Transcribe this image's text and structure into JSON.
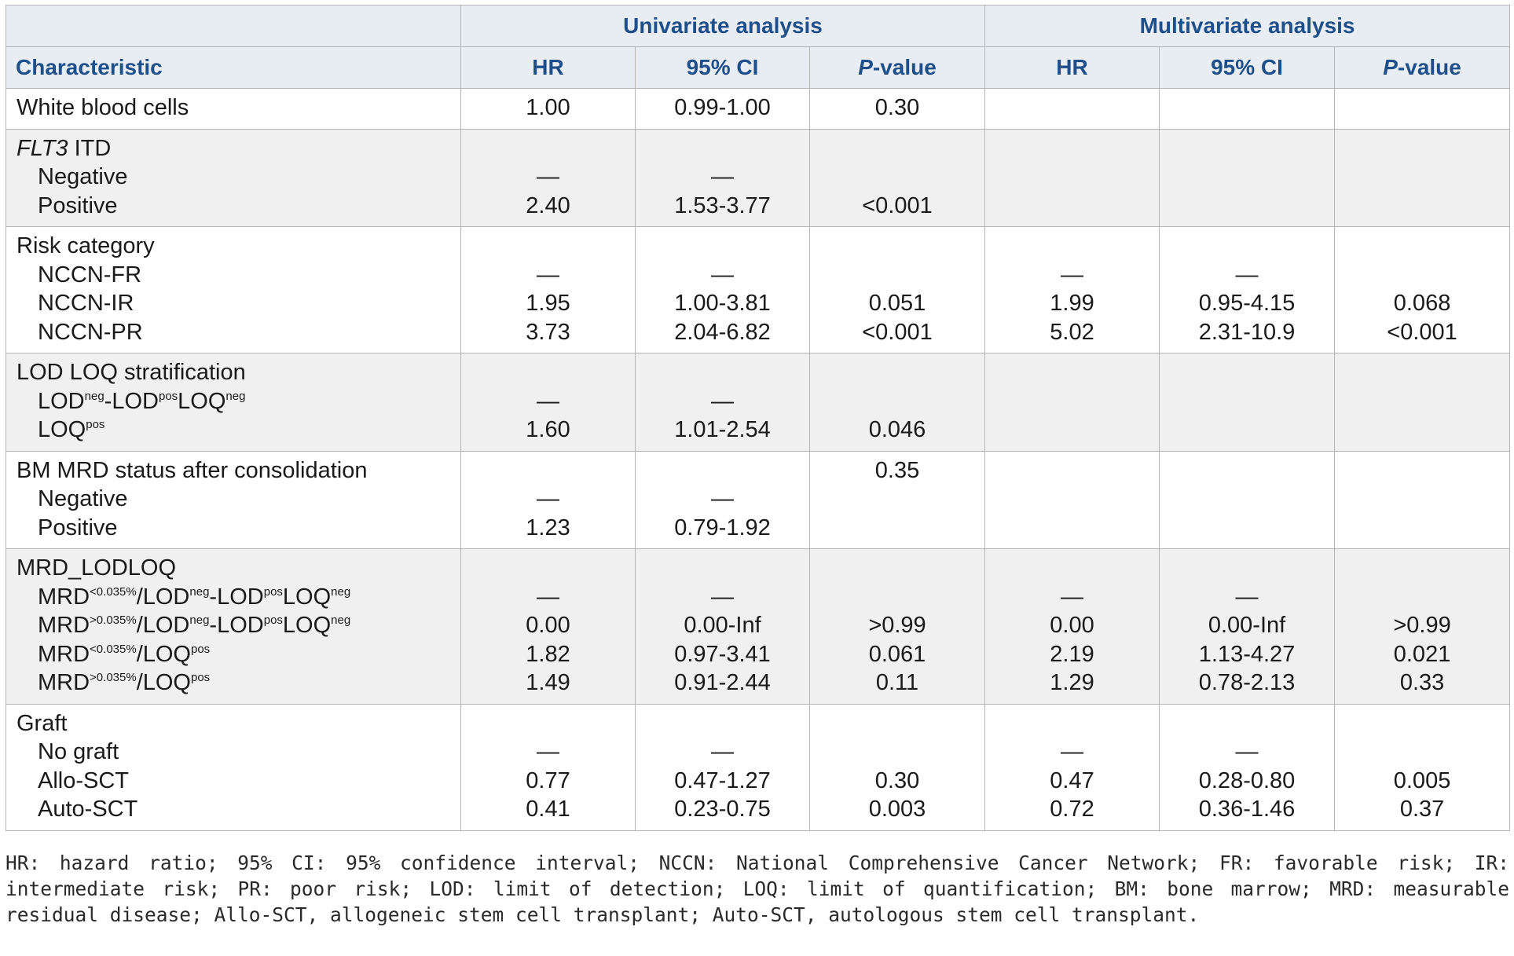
{
  "groups": {
    "univariate": "Univariate analysis",
    "multivariate": "Multivariate analysis"
  },
  "columns": {
    "characteristic": "Characteristic",
    "hr": "HR",
    "ci": "95% CI",
    "p_italic": "P",
    "p_rest": "-value"
  },
  "dash": "—",
  "sections": {
    "wbc": {
      "label": "White blood cells",
      "u_hr": "1.00",
      "u_ci": "0.99-1.00",
      "u_p": "0.30"
    },
    "flt3": {
      "label_italic": "FLT3",
      "label_rest": " ITD",
      "negative": "Negative",
      "positive": "Positive",
      "pos_u_hr": "2.40",
      "pos_u_ci": "1.53-3.77",
      "pos_u_p": "<0.001"
    },
    "risk": {
      "label": "Risk category",
      "fr": "NCCN-FR",
      "ir": "NCCN-IR",
      "pr": "NCCN-PR",
      "ir_u_hr": "1.95",
      "ir_u_ci": "1.00-3.81",
      "ir_u_p": "0.051",
      "pr_u_hr": "3.73",
      "pr_u_ci": "2.04-6.82",
      "pr_u_p": "<0.001",
      "ir_m_hr": "1.99",
      "ir_m_ci": "0.95-4.15",
      "ir_m_p": "0.068",
      "pr_m_hr": "5.02",
      "pr_m_ci": "2.31-10.9",
      "pr_m_p": "<0.001"
    },
    "lodloq": {
      "label": "LOD LOQ stratification",
      "lod": "LOD",
      "neg": "neg",
      "pos": "pos",
      "loq": "LOQ",
      "sep": "-",
      "pos_u_hr": "1.60",
      "pos_u_ci": "1.01-2.54",
      "pos_u_p": "0.046"
    },
    "bm": {
      "label": "BM MRD status after consolidation",
      "negative": "Negative",
      "positive": "Positive",
      "pos_u_hr": "1.23",
      "pos_u_ci": "0.79-1.92",
      "u_p": "0.35"
    },
    "mrd": {
      "label": "MRD_LODLOQ",
      "mrd": "MRD",
      "lt": "<0.035%",
      "gt": ">0.035%",
      "slash": "/",
      "r2_u_hr": "0.00",
      "r2_u_ci": "0.00-Inf",
      "r2_u_p": ">0.99",
      "r3_u_hr": "1.82",
      "r3_u_ci": "0.97-3.41",
      "r3_u_p": "0.061",
      "r4_u_hr": "1.49",
      "r4_u_ci": "0.91-2.44",
      "r4_u_p": "0.11",
      "r2_m_hr": "0.00",
      "r2_m_ci": "0.00-Inf",
      "r2_m_p": ">0.99",
      "r3_m_hr": "2.19",
      "r3_m_ci": "1.13-4.27",
      "r3_m_p": "0.021",
      "r4_m_hr": "1.29",
      "r4_m_ci": "0.78-2.13",
      "r4_m_p": "0.33"
    },
    "graft": {
      "label": "Graft",
      "none": "No graft",
      "allo": "Allo-SCT",
      "auto": "Auto-SCT",
      "allo_u_hr": "0.77",
      "allo_u_ci": "0.47-1.27",
      "allo_u_p": "0.30",
      "auto_u_hr": "0.41",
      "auto_u_ci": "0.23-0.75",
      "auto_u_p": "0.003",
      "allo_m_hr": "0.47",
      "allo_m_ci": "0.28-0.80",
      "allo_m_p": "0.005",
      "auto_m_hr": "0.72",
      "auto_m_ci": "0.36-1.46",
      "auto_m_p": "0.37"
    }
  },
  "footnote": "HR: hazard ratio; 95% CI: 95% confidence interval; NCCN: National Comprehensive Cancer Network; FR: favorable risk; IR: intermediate risk; PR: poor risk; LOD: limit of detection; LOQ: limit of quantification; BM: bone marrow; MRD: measurable residual disease; Allo-SCT, allogeneic stem cell transplant; Auto-SCT, autologous stem cell transplant."
}
